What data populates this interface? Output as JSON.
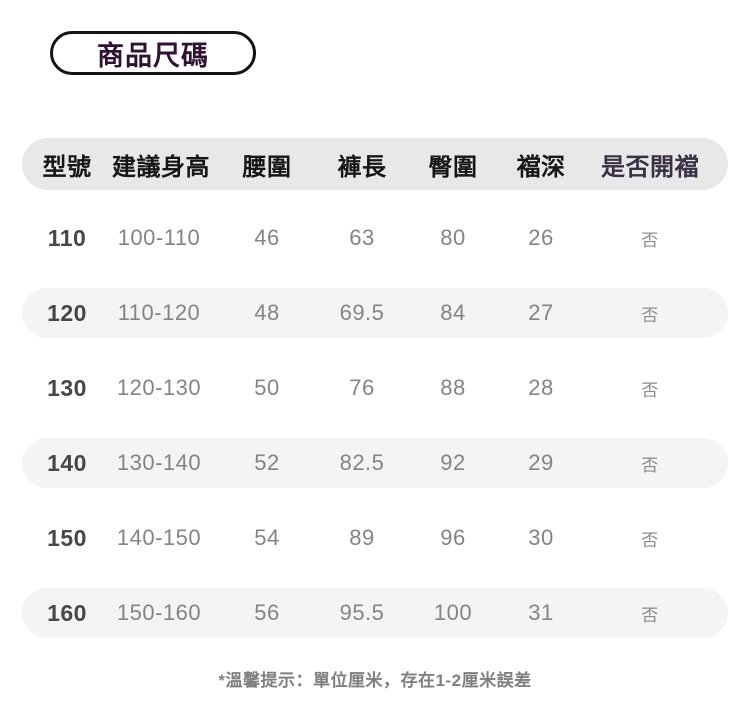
{
  "badge": {
    "label": "商品尺碼"
  },
  "table": {
    "headers": [
      "型號",
      "建議身高",
      "腰圍",
      "褲長",
      "臀圍",
      "襠深",
      "是否開襠"
    ],
    "rows": [
      [
        "110",
        "100-110",
        "46",
        "63",
        "80",
        "26",
        "否"
      ],
      [
        "120",
        "110-120",
        "48",
        "69.5",
        "84",
        "27",
        "否"
      ],
      [
        "130",
        "120-130",
        "50",
        "76",
        "88",
        "28",
        "否"
      ],
      [
        "140",
        "130-140",
        "52",
        "82.5",
        "92",
        "29",
        "否"
      ],
      [
        "150",
        "140-150",
        "54",
        "89",
        "96",
        "30",
        "否"
      ],
      [
        "160",
        "150-160",
        "56",
        "95.5",
        "100",
        "31",
        "否"
      ]
    ]
  },
  "footer": {
    "note": "*溫馨提示：單位厘米，存在1-2厘米誤差"
  },
  "colors": {
    "badge_text": "#301233",
    "badge_border": "#141414",
    "header_bg": "#e9e8e9",
    "header_text": "#161616",
    "header_last_text": "#3a3043",
    "stripe_bg": "#f5f4f5",
    "size_col_text": "#474747",
    "data_text": "#848484",
    "footer_text": "#7f7f7f",
    "page_bg": "#ffffff"
  },
  "chart_data": {
    "type": "table",
    "title": "商品尺碼",
    "columns": [
      "型號",
      "建議身高",
      "腰圍",
      "褲長",
      "臀圍",
      "襠深",
      "是否開襠"
    ],
    "rows": [
      [
        "110",
        "100-110",
        46,
        63,
        80,
        26,
        "否"
      ],
      [
        "120",
        "110-120",
        48,
        69.5,
        84,
        27,
        "否"
      ],
      [
        "130",
        "120-130",
        50,
        76,
        88,
        28,
        "否"
      ],
      [
        "140",
        "130-140",
        52,
        82.5,
        92,
        29,
        "否"
      ],
      [
        "150",
        "140-150",
        54,
        89,
        96,
        30,
        "否"
      ],
      [
        "160",
        "150-160",
        56,
        95.5,
        100,
        31,
        "否"
      ]
    ],
    "note": "*溫馨提示：單位厘米，存在1-2厘米誤差",
    "unit": "厘米"
  }
}
